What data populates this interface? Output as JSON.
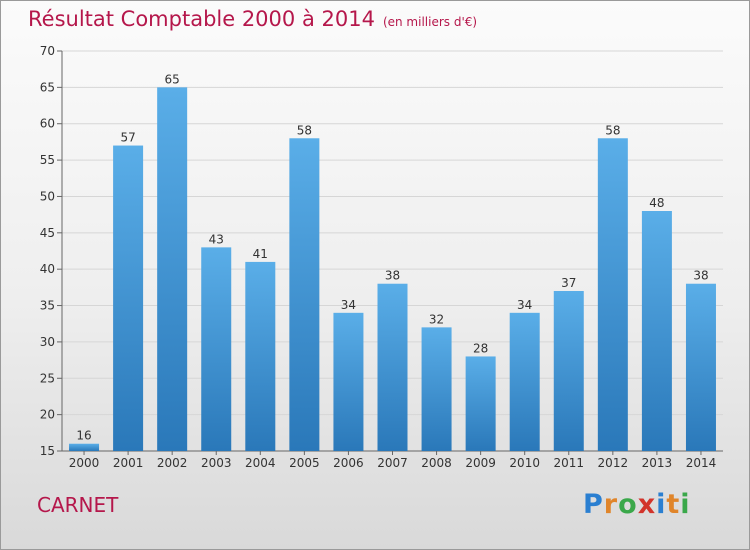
{
  "title": "Résultat Comptable 2000 à 2014",
  "subtitle": "(en milliers d'€)",
  "place": "CARNET",
  "logo": {
    "text": "Proxiti",
    "letter_colors": [
      "#2a7fd1",
      "#e0852a",
      "#3aa84a",
      "#d2342b",
      "#2a7fd1",
      "#e0852a",
      "#3aa84a"
    ]
  },
  "chart_data": {
    "type": "bar",
    "categories": [
      "2000",
      "2001",
      "2002",
      "2003",
      "2004",
      "2005",
      "2006",
      "2007",
      "2008",
      "2009",
      "2010",
      "2011",
      "2012",
      "2013",
      "2014"
    ],
    "values": [
      16,
      57,
      65,
      43,
      41,
      58,
      34,
      38,
      32,
      28,
      34,
      37,
      58,
      48,
      38
    ],
    "title": "Résultat Comptable 2000 à 2014",
    "subtitle": "(en milliers d'€)",
    "ylim": [
      15,
      70
    ],
    "yticks": [
      15,
      20,
      25,
      30,
      35,
      40,
      45,
      50,
      55,
      60,
      65,
      70
    ],
    "grid": "horizontal",
    "bar_color": "#3f97dc"
  }
}
